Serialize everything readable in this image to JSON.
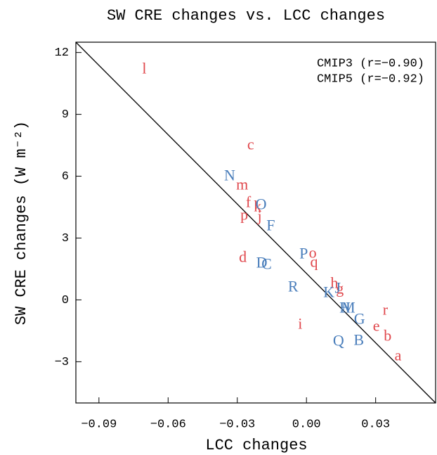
{
  "chart_data": {
    "type": "scatter",
    "title": "SW CRE changes vs. LCC changes",
    "x_label": "LCC changes",
    "y_label": "SW CRE changes (W m⁻²)",
    "xlim": [
      -0.1,
      0.056
    ],
    "ylim": [
      -5,
      12.5
    ],
    "xticks": [
      {
        "value": -0.09,
        "label": "−0.09"
      },
      {
        "value": -0.06,
        "label": "−0.06"
      },
      {
        "value": -0.03,
        "label": "−0.03"
      },
      {
        "value": 0,
        "label": "0.00"
      },
      0.03
    ],
    "yticks": [
      {
        "value": -3,
        "label": "−3"
      },
      0,
      3,
      6,
      9,
      12
    ],
    "legend": "upper right",
    "fit_line": {
      "x": [
        -0.1,
        0.056
      ],
      "y": [
        12.5,
        -5
      ],
      "color": "#000000"
    },
    "series": [
      {
        "name": "CMIP3 (r=−0.90)",
        "color": "#e0474c",
        "labels": [
          "l",
          "c",
          "m",
          "f",
          "k",
          "p",
          "j",
          "d",
          "o",
          "q",
          "h",
          "g",
          "i",
          "r",
          "e",
          "b",
          "a"
        ],
        "x": [
          -0.0703,
          -0.0242,
          -0.0279,
          -0.0252,
          -0.0212,
          -0.027,
          -0.0203,
          -0.0276,
          0.0027,
          0.0033,
          0.0121,
          0.0145,
          -0.0027,
          0.0342,
          0.0303,
          0.0352,
          0.0397
        ],
        "y": [
          11.15,
          7.47,
          5.52,
          4.67,
          4.47,
          4.06,
          3.99,
          2.01,
          2.22,
          1.77,
          0.75,
          0.48,
          -1.23,
          -0.55,
          -1.33,
          -1.81,
          -2.76
        ]
      },
      {
        "name": "CMIP5 (r=−0.92)",
        "color": "#4a7ebb",
        "labels": [
          "N",
          "O",
          "F",
          "P",
          "D",
          "C",
          "R",
          "K",
          "J",
          "H",
          "M",
          "G",
          "Q",
          "B"
        ],
        "x": [
          -0.0333,
          -0.0197,
          -0.0155,
          -0.0012,
          -0.0194,
          -0.0173,
          -0.0058,
          0.0097,
          0.0136,
          0.0167,
          0.0182,
          0.023,
          0.0139,
          0.0227
        ],
        "y": [
          5.97,
          4.57,
          3.55,
          2.18,
          1.74,
          1.67,
          0.58,
          0.31,
          0.51,
          -0.44,
          -0.44,
          -0.99,
          -2.05,
          -2.01
        ]
      }
    ]
  }
}
